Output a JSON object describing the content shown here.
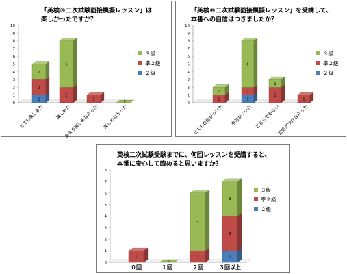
{
  "chart_data": [
    {
      "type": "bar",
      "stacked": true,
      "three_d": true,
      "title": [
        "「英検®二次試験面接模擬レッスン」は",
        "楽しかったですか？"
      ],
      "categories": [
        "とても楽しめた",
        "楽しめた",
        "あまり楽しめなかった",
        "楽しめなかった"
      ],
      "series": [
        {
          "name": "２級",
          "color": "#4a7ebb",
          "values": [
            1,
            0,
            0,
            0
          ]
        },
        {
          "name": "準２級",
          "color": "#be4b48",
          "values": [
            2,
            2,
            1,
            0
          ]
        },
        {
          "name": "３級",
          "color": "#98b954",
          "values": [
            2,
            6,
            0,
            0
          ]
        }
      ],
      "ylim": [
        0,
        10
      ],
      "yticks": [
        0,
        1,
        2,
        3,
        4,
        5,
        6,
        7,
        8,
        9,
        10
      ],
      "grid": false,
      "legend": "right"
    },
    {
      "type": "bar",
      "stacked": true,
      "three_d": true,
      "title": [
        "「英検®二次試験面接模擬レッスン」を受講して、",
        "本番への自信はつきましたか？"
      ],
      "categories": [
        "とても自信がついた",
        "自信がついた",
        "どちらでもない",
        "自信がつかなかった"
      ],
      "series": [
        {
          "name": "２級",
          "color": "#4a7ebb",
          "values": [
            0,
            1,
            0,
            0
          ]
        },
        {
          "name": "準２級",
          "color": "#be4b48",
          "values": [
            1,
            1,
            2,
            1
          ]
        },
        {
          "name": "３級",
          "color": "#98b954",
          "values": [
            1,
            6,
            1,
            0
          ]
        }
      ],
      "ylim": [
        0,
        10
      ],
      "yticks": [
        0,
        1,
        2,
        3,
        4,
        5,
        6,
        7,
        8,
        9,
        10
      ],
      "grid": false,
      "legend": "right"
    },
    {
      "type": "bar",
      "stacked": true,
      "three_d": true,
      "title": [
        "英検二次試験受験までに、何回レッスンを受講すると、",
        "本番に安心して臨めると思いますか？"
      ],
      "categories": [
        "０回",
        "１回",
        "２回",
        "３回以上"
      ],
      "series": [
        {
          "name": "２級",
          "color": "#4a7ebb",
          "values": [
            0,
            0,
            0,
            1
          ]
        },
        {
          "name": "準２級",
          "color": "#be4b48",
          "values": [
            1,
            0,
            1,
            3
          ]
        },
        {
          "name": "３級",
          "color": "#98b954",
          "values": [
            0,
            0,
            5,
            3
          ]
        }
      ],
      "ylim": [
        0,
        8
      ],
      "yticks": [
        0,
        1,
        2,
        3,
        4,
        5,
        6,
        7,
        8
      ],
      "grid": false,
      "legend": "right"
    }
  ]
}
